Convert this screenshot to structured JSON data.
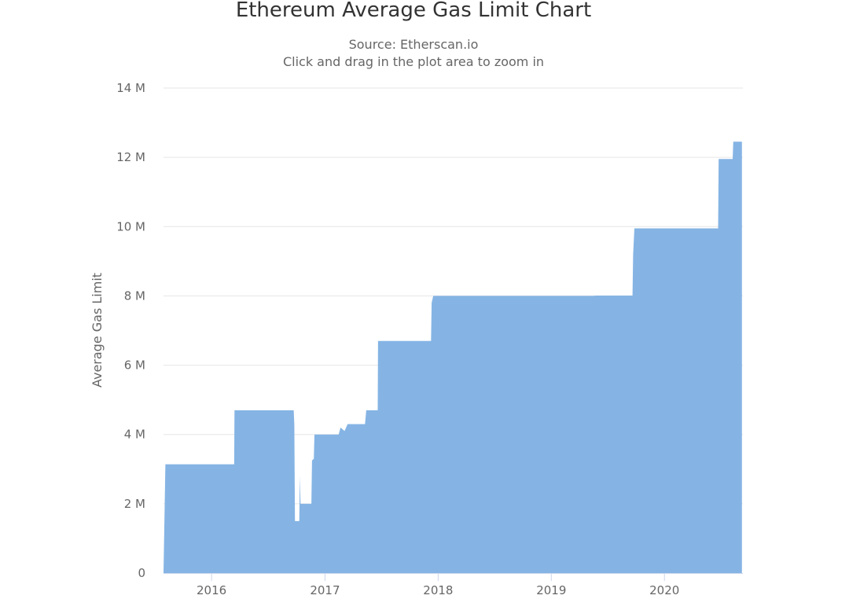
{
  "header": {
    "title": "Ethereum Average Gas Limit Chart",
    "source": "Source: Etherscan.io",
    "hint": "Click and drag in the plot area to zoom in"
  },
  "chart_data": {
    "type": "area",
    "title": "Ethereum Average Gas Limit Chart",
    "subtitle": "Source: Etherscan.io",
    "xlabel": "",
    "ylabel": "Average Gas Limit",
    "x_type": "datetime",
    "xlim": [
      "2015-07-30",
      "2020-09-10"
    ],
    "ylim": [
      0,
      14000000
    ],
    "y_ticks": [
      0,
      2000000,
      4000000,
      6000000,
      8000000,
      10000000,
      12000000,
      14000000
    ],
    "y_tick_labels": [
      "0",
      "2 M",
      "4 M",
      "6 M",
      "8 M",
      "10 M",
      "12 M",
      "14 M"
    ],
    "x_ticks": [
      "2016-01-01",
      "2017-01-01",
      "2018-01-01",
      "2019-01-01",
      "2020-01-01"
    ],
    "x_tick_labels": [
      "2016",
      "2017",
      "2018",
      "2019",
      "2020"
    ],
    "grid": true,
    "legend": "none",
    "color": "#85b4e4",
    "series": [
      {
        "points": [
          [
            "2015-07-30",
            5000
          ],
          [
            "2015-08-05",
            3140000
          ],
          [
            "2016-03-14",
            3140000
          ],
          [
            "2016-03-15",
            4700000
          ],
          [
            "2016-09-22",
            4700000
          ],
          [
            "2016-09-24",
            4300000
          ],
          [
            "2016-09-26",
            1500000
          ],
          [
            "2016-10-10",
            1500000
          ],
          [
            "2016-10-12",
            2800000
          ],
          [
            "2016-10-14",
            2000000
          ],
          [
            "2016-11-18",
            2000000
          ],
          [
            "2016-11-20",
            3250000
          ],
          [
            "2016-11-26",
            3300000
          ],
          [
            "2016-11-28",
            4000000
          ],
          [
            "2017-02-14",
            4000000
          ],
          [
            "2017-02-20",
            4200000
          ],
          [
            "2017-03-05",
            4100000
          ],
          [
            "2017-03-15",
            4300000
          ],
          [
            "2017-05-10",
            4300000
          ],
          [
            "2017-05-14",
            4700000
          ],
          [
            "2017-06-20",
            4700000
          ],
          [
            "2017-06-21",
            6700000
          ],
          [
            "2017-12-09",
            6700000
          ],
          [
            "2017-12-11",
            7800000
          ],
          [
            "2017-12-16",
            8000000
          ],
          [
            "2019-05-20",
            8000000
          ],
          [
            "2019-05-21",
            8010000
          ],
          [
            "2019-09-20",
            8010000
          ],
          [
            "2019-09-22",
            9200000
          ],
          [
            "2019-09-26",
            9950000
          ],
          [
            "2020-06-22",
            9950000
          ],
          [
            "2020-06-24",
            11950000
          ],
          [
            "2020-08-08",
            11950000
          ],
          [
            "2020-08-10",
            12450000
          ],
          [
            "2020-09-07",
            12450000
          ]
        ]
      }
    ]
  }
}
